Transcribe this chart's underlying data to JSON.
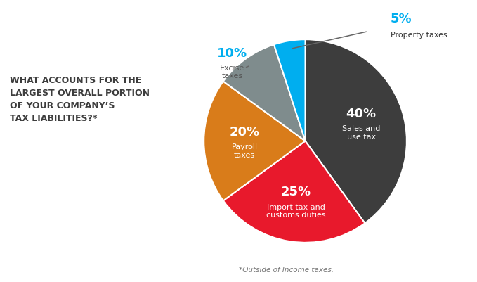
{
  "title": "WHAT ACCOUNTS FOR THE\nLARGEST OVERALL PORTION\nOF YOUR COMPANY’S\nTAX LIABILITIES?*",
  "footnote": "*Outside of Income taxes.",
  "slices": [
    {
      "label": "Sales and\nuse tax",
      "pct": 40,
      "color": "#3d3d3d",
      "text_color": "#ffffff",
      "pct_color": "#ffffff",
      "outside": false
    },
    {
      "label": "Import tax and\ncustoms duties",
      "pct": 25,
      "color": "#e8192c",
      "text_color": "#ffffff",
      "pct_color": "#ffffff",
      "outside": false
    },
    {
      "label": "Payroll\ntaxes",
      "pct": 20,
      "color": "#d97c1a",
      "text_color": "#ffffff",
      "pct_color": "#ffffff",
      "outside": false
    },
    {
      "label": "Excise\ntaxes",
      "pct": 10,
      "color": "#7f8c8d",
      "text_color": "#555555",
      "pct_color": "#00aeef",
      "outside": true
    },
    {
      "label": "Property taxes",
      "pct": 5,
      "color": "#00aeef",
      "text_color": "#333333",
      "pct_color": "#00aeef",
      "outside": true
    }
  ],
  "start_angle": 90,
  "background_color": "#ffffff"
}
